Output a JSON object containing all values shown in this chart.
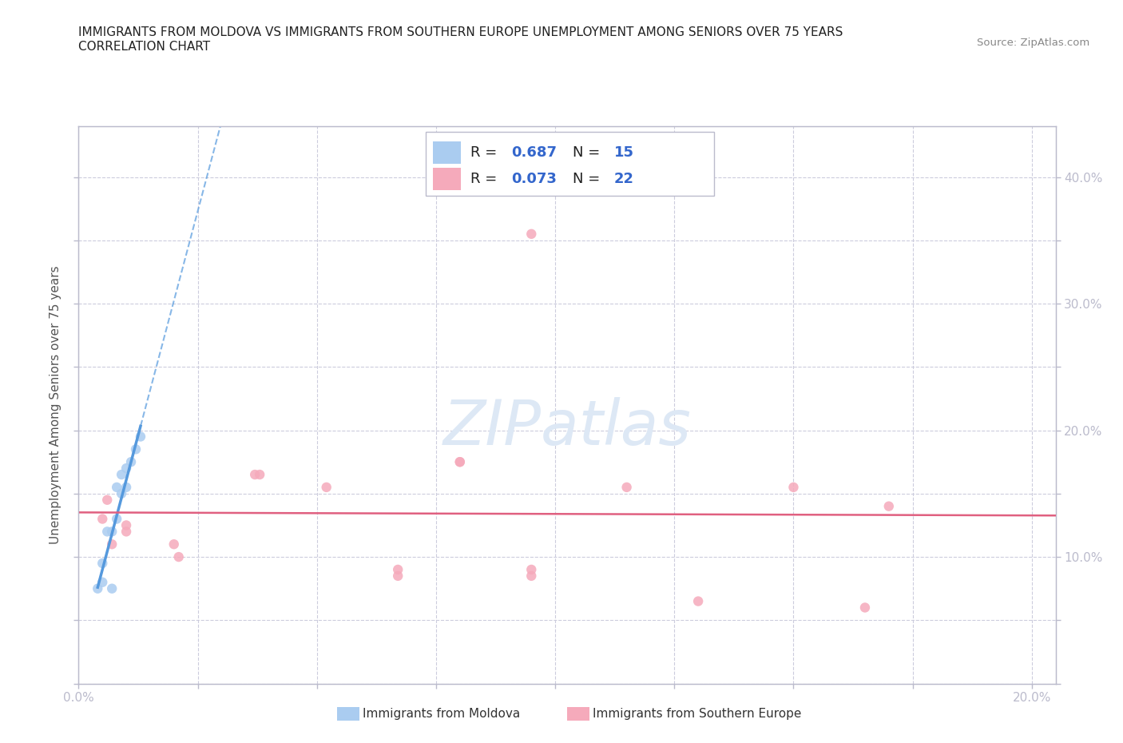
{
  "title_line1": "IMMIGRANTS FROM MOLDOVA VS IMMIGRANTS FROM SOUTHERN EUROPE UNEMPLOYMENT AMONG SENIORS OVER 75 YEARS",
  "title_line2": "CORRELATION CHART",
  "source_text": "Source: ZipAtlas.com",
  "ylabel": "Unemployment Among Seniors over 75 years",
  "xlim": [
    0.0,
    0.205
  ],
  "ylim": [
    0.0,
    0.44
  ],
  "xticks": [
    0.0,
    0.025,
    0.05,
    0.075,
    0.1,
    0.125,
    0.15,
    0.175,
    0.2
  ],
  "yticks": [
    0.0,
    0.05,
    0.1,
    0.15,
    0.2,
    0.25,
    0.3,
    0.35,
    0.4
  ],
  "watermark": "ZIPatlas",
  "moldova_color": "#aaccf0",
  "moldova_line_color": "#5599dd",
  "southern_europe_color": "#f5aabb",
  "southern_europe_line_color": "#e06080",
  "legend_R_moldova": "0.687",
  "legend_N_moldova": "15",
  "legend_R_southern": "0.073",
  "legend_N_southern": "22",
  "moldova_x": [
    0.004,
    0.005,
    0.005,
    0.006,
    0.007,
    0.007,
    0.008,
    0.008,
    0.009,
    0.009,
    0.01,
    0.01,
    0.011,
    0.012,
    0.013
  ],
  "moldova_y": [
    0.075,
    0.08,
    0.095,
    0.12,
    0.075,
    0.12,
    0.13,
    0.155,
    0.15,
    0.165,
    0.155,
    0.17,
    0.175,
    0.185,
    0.195
  ],
  "southern_europe_x": [
    0.005,
    0.006,
    0.007,
    0.01,
    0.01,
    0.02,
    0.021,
    0.037,
    0.038,
    0.052,
    0.067,
    0.067,
    0.08,
    0.08,
    0.095,
    0.095,
    0.095,
    0.115,
    0.13,
    0.15,
    0.165,
    0.17
  ],
  "southern_europe_y": [
    0.13,
    0.145,
    0.11,
    0.12,
    0.125,
    0.11,
    0.1,
    0.165,
    0.165,
    0.155,
    0.085,
    0.09,
    0.175,
    0.175,
    0.085,
    0.09,
    0.355,
    0.155,
    0.065,
    0.155,
    0.06,
    0.14
  ],
  "background_color": "#ffffff",
  "grid_color": "#ccccdd",
  "axis_color": "#bbbbcc",
  "text_color_blue": "#3366cc"
}
